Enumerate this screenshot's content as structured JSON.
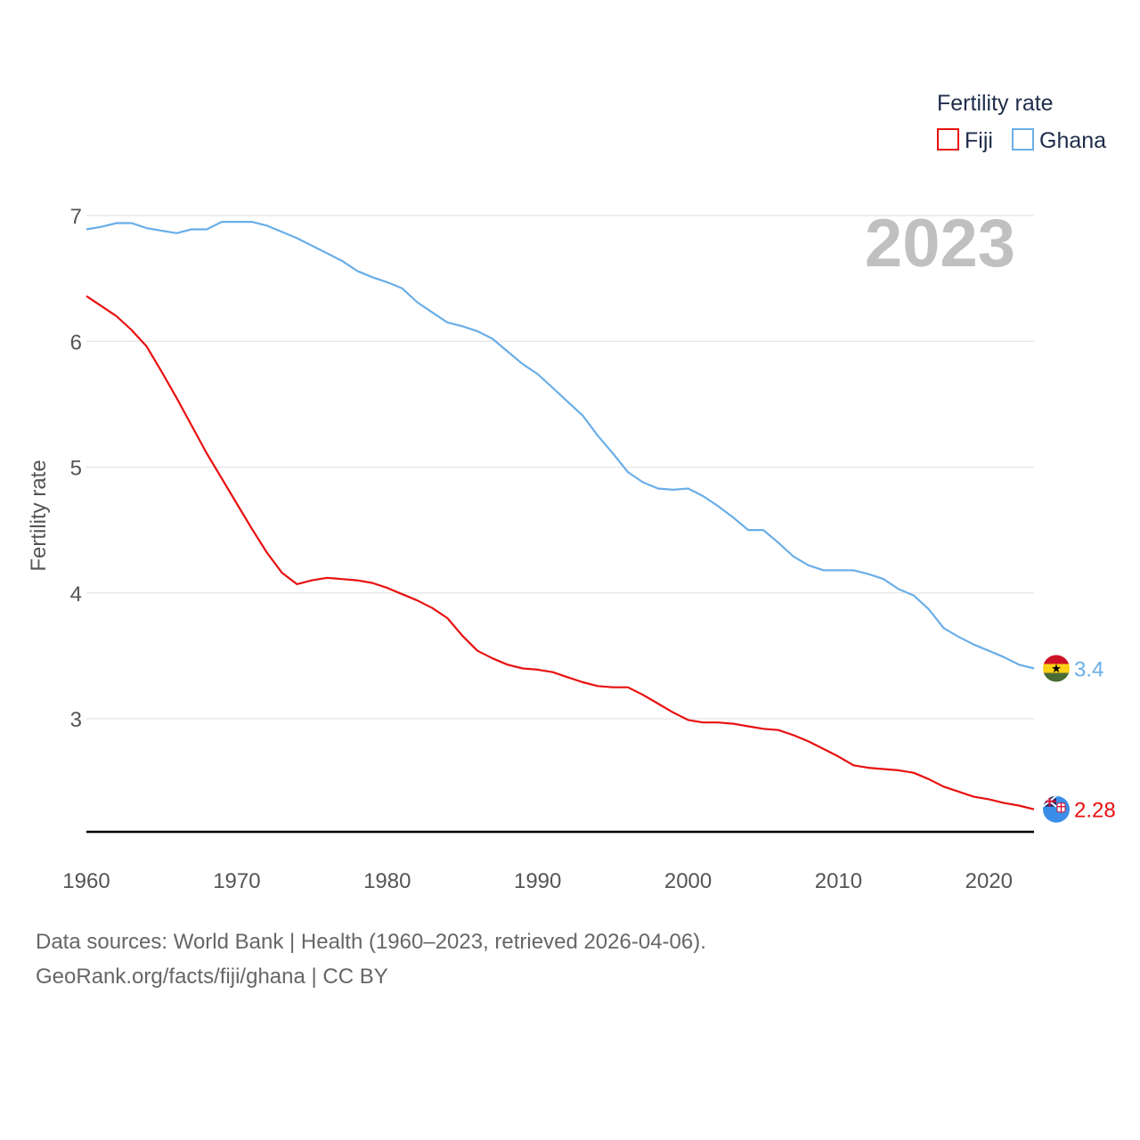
{
  "chart_data": {
    "type": "line",
    "title": "",
    "xlabel": "",
    "ylabel": "Fertility rate",
    "xlim": [
      1960,
      2023
    ],
    "ylim": [
      2.1,
      7.0
    ],
    "yticks": [
      3,
      4,
      5,
      6,
      7
    ],
    "xticks": [
      1960,
      1970,
      1980,
      1990,
      2000,
      2010,
      2020
    ],
    "grid": true,
    "legend_title": "Fertility rate",
    "legend_position": "top-right",
    "year_label": "2023",
    "x": [
      1960,
      1961,
      1962,
      1963,
      1964,
      1965,
      1966,
      1967,
      1968,
      1969,
      1970,
      1971,
      1972,
      1973,
      1974,
      1975,
      1976,
      1977,
      1978,
      1979,
      1980,
      1981,
      1982,
      1983,
      1984,
      1985,
      1986,
      1987,
      1988,
      1989,
      1990,
      1991,
      1992,
      1993,
      1994,
      1995,
      1996,
      1997,
      1998,
      1999,
      2000,
      2001,
      2002,
      2003,
      2004,
      2005,
      2006,
      2007,
      2008,
      2009,
      2010,
      2011,
      2012,
      2013,
      2014,
      2015,
      2016,
      2017,
      2018,
      2019,
      2020,
      2021,
      2022,
      2023
    ],
    "series": [
      {
        "name": "Fiji",
        "color": "#e81010",
        "end_label": "2.28",
        "flag": "fiji-flag-icon",
        "values": [
          6.36,
          6.28,
          6.2,
          6.09,
          5.96,
          5.76,
          5.55,
          5.33,
          5.11,
          4.91,
          4.71,
          4.51,
          4.32,
          4.16,
          4.07,
          4.1,
          4.12,
          4.11,
          4.1,
          4.08,
          4.04,
          3.99,
          3.94,
          3.88,
          3.8,
          3.66,
          3.54,
          3.48,
          3.43,
          3.4,
          3.39,
          3.37,
          3.33,
          3.29,
          3.26,
          3.25,
          3.25,
          3.19,
          3.12,
          3.05,
          2.99,
          2.97,
          2.97,
          2.96,
          2.94,
          2.92,
          2.91,
          2.87,
          2.82,
          2.76,
          2.7,
          2.63,
          2.61,
          2.6,
          2.59,
          2.57,
          2.52,
          2.46,
          2.42,
          2.38,
          2.36,
          2.33,
          2.31,
          2.28
        ]
      },
      {
        "name": "Ghana",
        "color": "#6aaee8",
        "end_label": "3.4",
        "flag": "ghana-flag-icon",
        "values": [
          6.89,
          6.91,
          6.94,
          6.94,
          6.9,
          6.88,
          6.86,
          6.89,
          6.89,
          6.95,
          6.95,
          6.95,
          6.92,
          6.87,
          6.82,
          6.76,
          6.7,
          6.64,
          6.56,
          6.51,
          6.47,
          6.42,
          6.31,
          6.23,
          6.15,
          6.12,
          6.08,
          6.02,
          5.92,
          5.82,
          5.74,
          5.63,
          5.52,
          5.41,
          5.25,
          5.11,
          4.96,
          4.88,
          4.83,
          4.82,
          4.83,
          4.77,
          4.69,
          4.6,
          4.5,
          4.5,
          4.4,
          4.29,
          4.22,
          4.18,
          4.18,
          4.18,
          4.15,
          4.11,
          4.03,
          3.98,
          3.87,
          3.72,
          3.65,
          3.59,
          3.54,
          3.49,
          3.43,
          3.4
        ]
      }
    ]
  },
  "footer": {
    "line1": "Data sources: World Bank | Health (1960–2023, retrieved 2026-04-06).",
    "line2": "GeoRank.org/facts/fiji/ghana | CC BY"
  }
}
